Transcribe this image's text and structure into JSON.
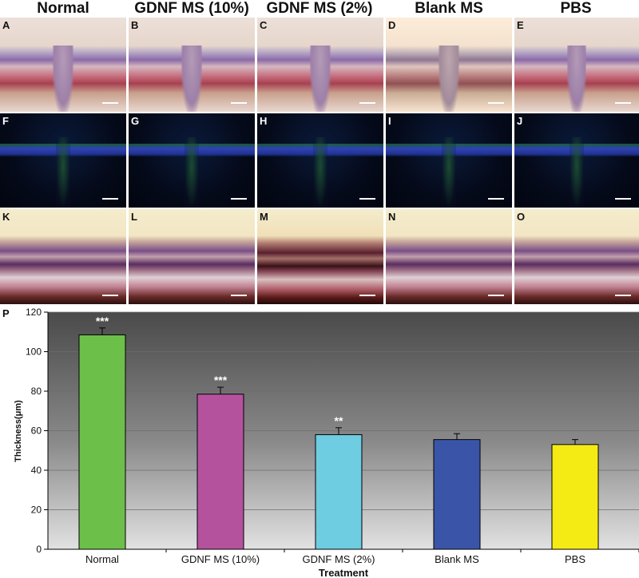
{
  "column_titles": [
    "Normal",
    "GDNF MS (10%)",
    "GDNF MS (2%)",
    "Blank MS",
    "PBS"
  ],
  "panel_labels": {
    "row1": [
      "A",
      "B",
      "C",
      "D",
      "E"
    ],
    "row2": [
      "F",
      "G",
      "H",
      "I",
      "J"
    ],
    "row3": [
      "K",
      "L",
      "M",
      "N",
      "O"
    ]
  },
  "chart_panel_label": "P",
  "chart_data": {
    "type": "bar",
    "categories": [
      "Normal",
      "GDNF MS (10%)",
      "GDNF MS (2%)",
      "Blank MS",
      "PBS"
    ],
    "values": [
      108.5,
      78.5,
      58,
      55.5,
      53
    ],
    "errors": [
      3.5,
      3.5,
      3.5,
      3,
      2.5
    ],
    "significance": [
      "***",
      "***",
      "**",
      "",
      ""
    ],
    "colors": [
      "#6cc04a",
      "#b5529e",
      "#6ecde0",
      "#3a55a8",
      "#f5eb14"
    ],
    "xlabel": "Treatment",
    "ylabel": "Thickness(μm)",
    "ylim": [
      0,
      120
    ],
    "yticks": [
      0,
      20,
      40,
      60,
      80,
      100,
      120
    ],
    "grid": true
  }
}
